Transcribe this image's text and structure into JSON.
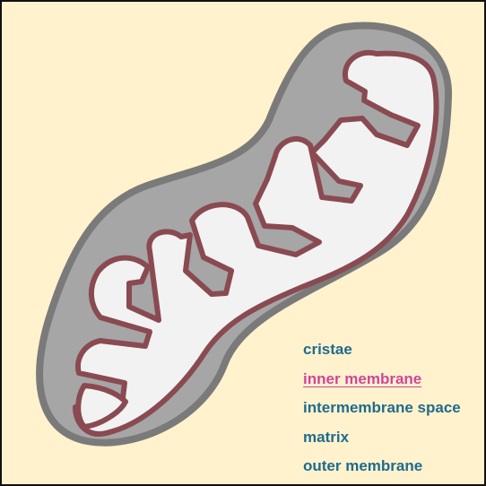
{
  "diagram": {
    "subject": "mitochondrion",
    "labels": [
      {
        "key": "cristae",
        "text": "cristae",
        "selected": false
      },
      {
        "key": "inner-membrane",
        "text": "inner membrane",
        "selected": true
      },
      {
        "key": "intermembrane-space",
        "text": "intermembrane space",
        "selected": false
      },
      {
        "key": "matrix",
        "text": "matrix",
        "selected": false
      },
      {
        "key": "outer-membrane",
        "text": "outer membrane",
        "selected": false
      }
    ]
  },
  "colors": {
    "background": "#fff2cc",
    "outer_membrane_fill": "#a6a6a6",
    "outer_membrane_stroke": "#7a7a7a",
    "inner_membrane": "#8a4a52",
    "matrix": "#f2f2f2",
    "label_text": "#1f6b8f",
    "label_selected": "#d0459b"
  }
}
